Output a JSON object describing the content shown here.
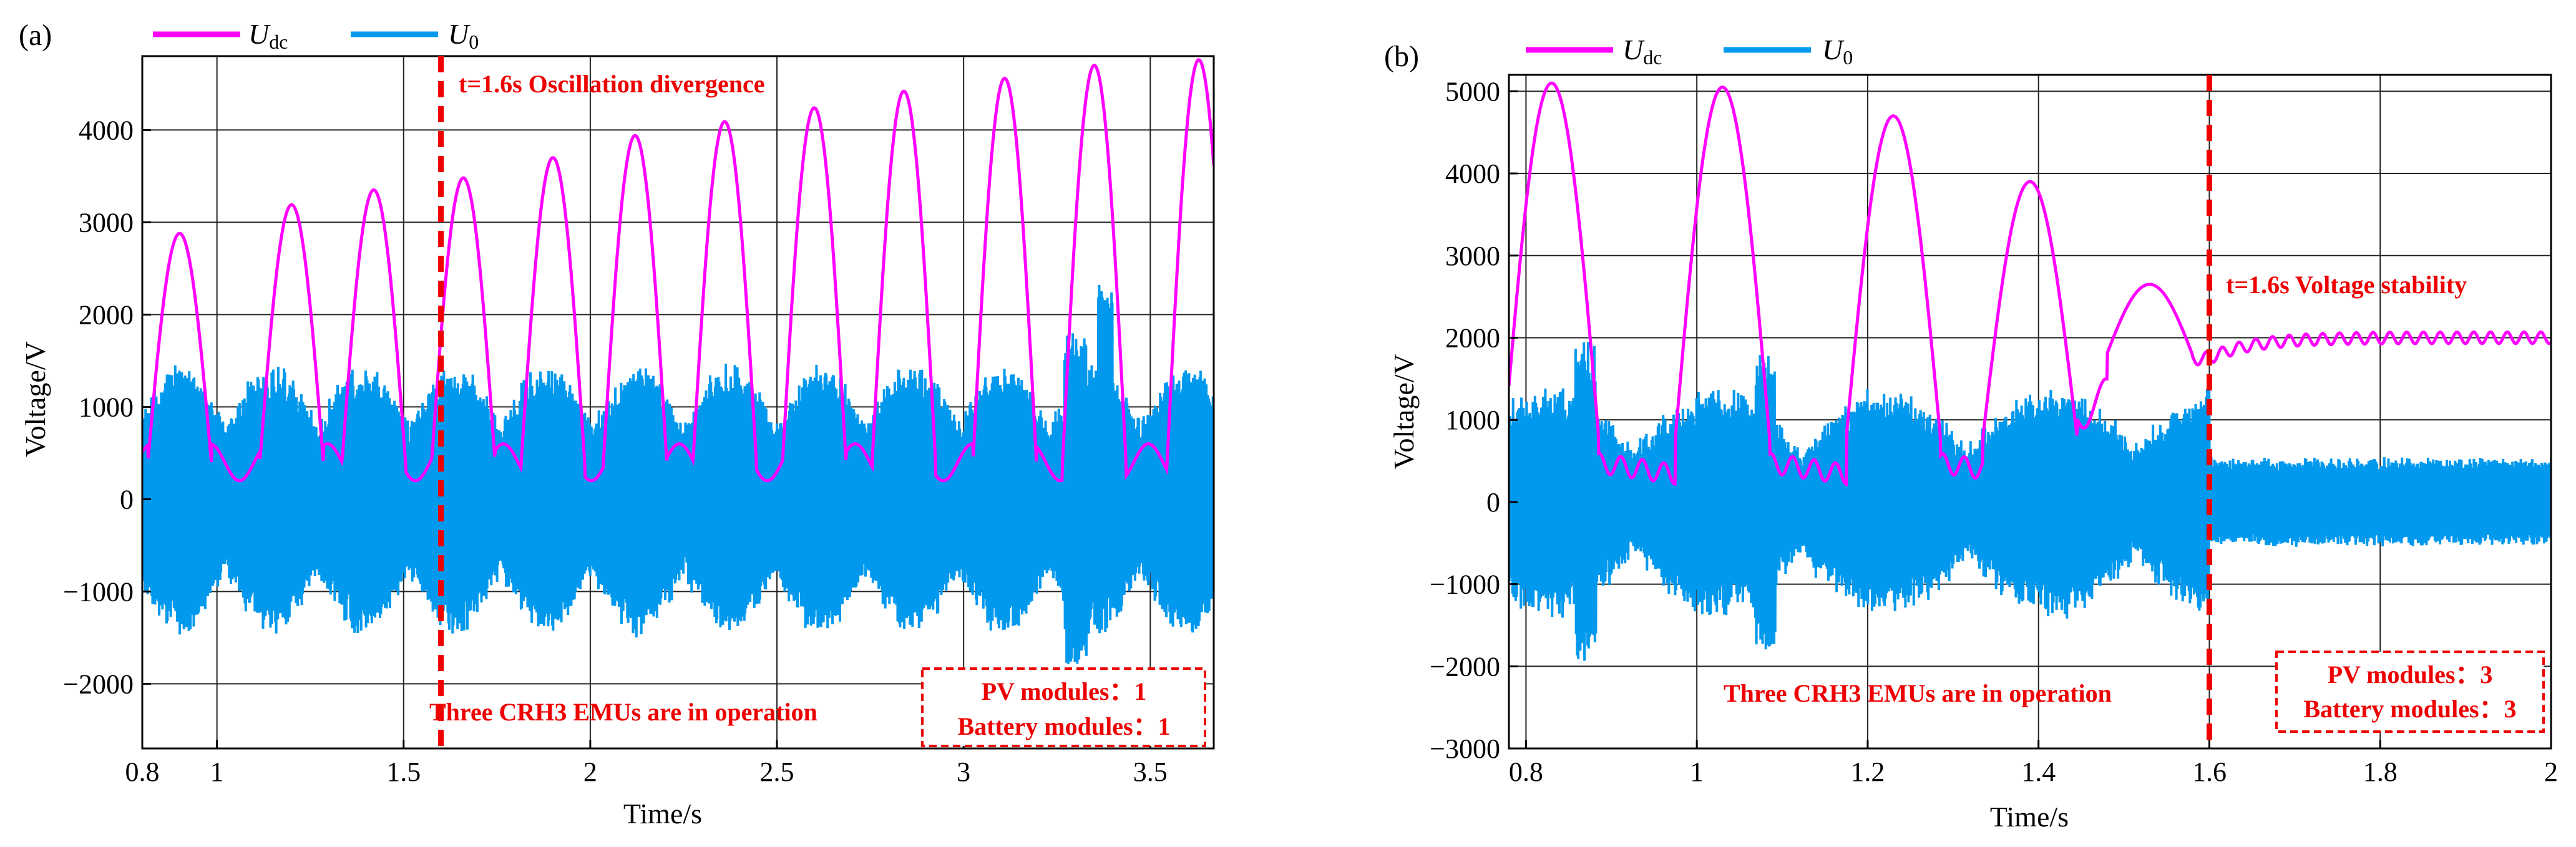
{
  "chart_data": [
    {
      "panel_label": "(a)",
      "type": "line",
      "xlabel": "Time/s",
      "ylabel": "Voltage/V",
      "xlim": [
        0.8,
        3.67
      ],
      "ylim": [
        -2700,
        4800
      ],
      "x_ticks": [
        0.8,
        1,
        1.5,
        2,
        2.5,
        3,
        3.5
      ],
      "y_ticks": [
        -2000,
        -1000,
        0,
        1000,
        2000,
        3000,
        4000
      ],
      "grid": true,
      "legend": [
        {
          "symbol": "U",
          "subscript": "dc",
          "color": "#ff00ff"
        },
        {
          "symbol": "U",
          "subscript": "0",
          "color": "#0099ee"
        }
      ],
      "event_x": 1.6,
      "event_label": "t=1.6s Oscillation divergence",
      "operation_note": "Three CRH3 EMUs are in operation",
      "modules_box": [
        "PV modules：1",
        "Battery modules：1"
      ],
      "udc_peaks": [
        {
          "t": 0.9,
          "v": 2880
        },
        {
          "t": 1.2,
          "v": 3190
        },
        {
          "t": 1.42,
          "v": 3350
        },
        {
          "t": 1.66,
          "v": 3480
        },
        {
          "t": 1.9,
          "v": 3700
        },
        {
          "t": 2.12,
          "v": 3940
        },
        {
          "t": 2.36,
          "v": 4090
        },
        {
          "t": 2.6,
          "v": 4240
        },
        {
          "t": 2.84,
          "v": 4420
        },
        {
          "t": 3.11,
          "v": 4560
        },
        {
          "t": 3.35,
          "v": 4700
        },
        {
          "t": 3.63,
          "v": 4760
        }
      ],
      "u0_envelope": {
        "min": -1400,
        "max": 1400,
        "spike_max": 2380,
        "spike_min": -2000
      }
    },
    {
      "panel_label": "(b)",
      "type": "line",
      "xlabel": "Time/s",
      "ylabel": "Voltage/V",
      "xlim": [
        0.78,
        2.0
      ],
      "ylim": [
        -3000,
        5200
      ],
      "x_ticks": [
        0.8,
        1,
        1.2,
        1.4,
        1.6,
        1.8,
        2
      ],
      "y_ticks": [
        -3000,
        -2000,
        -1000,
        0,
        1000,
        2000,
        3000,
        4000,
        5000
      ],
      "grid": true,
      "legend": [
        {
          "symbol": "U",
          "subscript": "dc",
          "color": "#ff00ff"
        },
        {
          "symbol": "U",
          "subscript": "0",
          "color": "#0099ee"
        }
      ],
      "event_x": 1.6,
      "event_label": "t=1.6s Voltage stability",
      "operation_note": "Three CRH3 EMUs are in operation",
      "modules_box": [
        "PV modules：3",
        "Battery modules：3"
      ],
      "udc_peaks": [
        {
          "t": 0.83,
          "v": 5100
        },
        {
          "t": 1.03,
          "v": 5050
        },
        {
          "t": 1.23,
          "v": 4700
        },
        {
          "t": 1.39,
          "v": 3900
        },
        {
          "t": 1.53,
          "v": 2650
        }
      ],
      "udc_steady": 2000,
      "u0_envelope": {
        "min": -2000,
        "max": 2000,
        "steady_min": -550,
        "steady_max": 550
      }
    }
  ]
}
